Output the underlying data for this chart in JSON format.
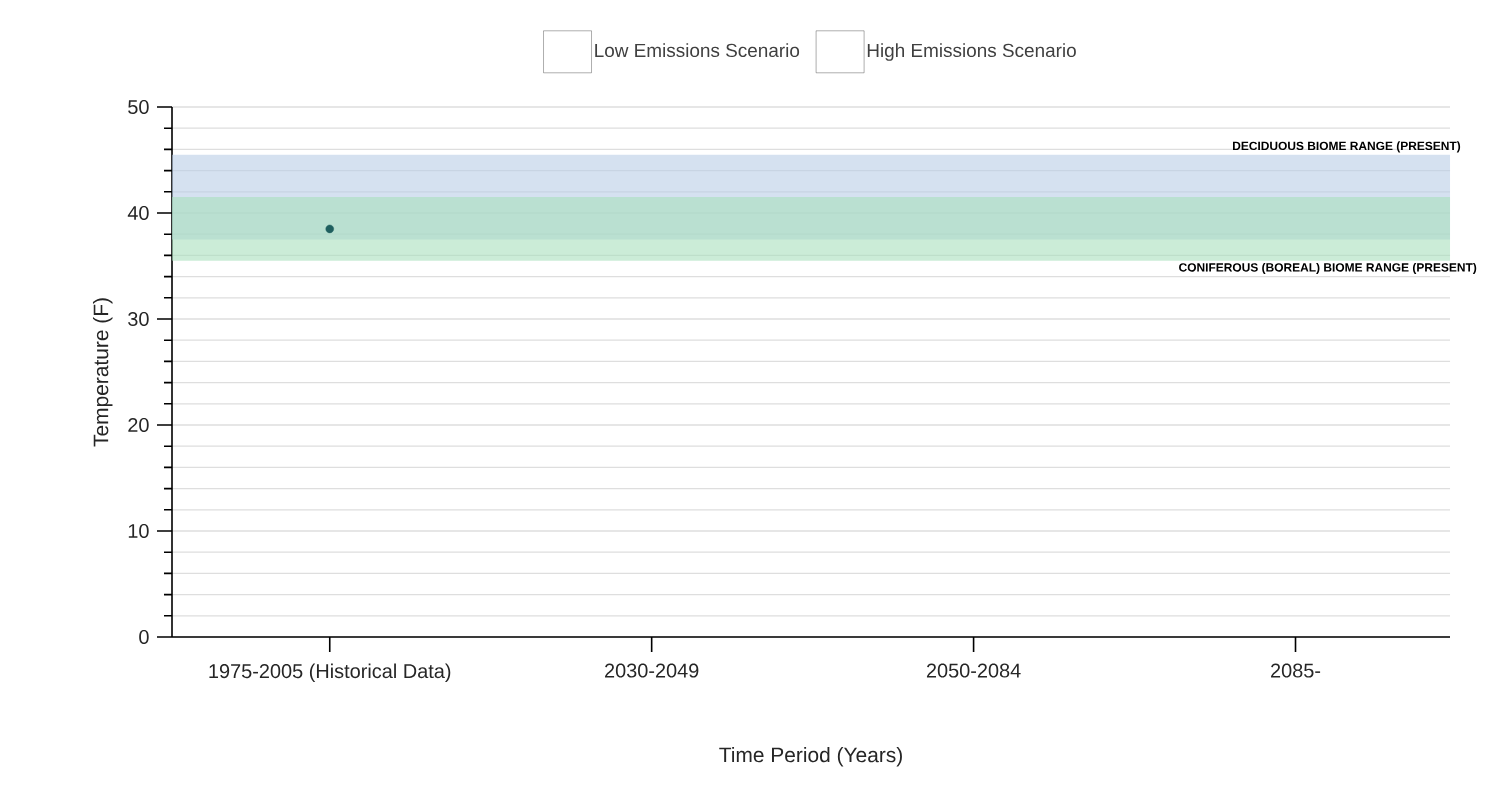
{
  "chart_data": {
    "type": "scatter",
    "xlabel": "Time Period (Years)",
    "ylabel": "Temperature (F)",
    "categories": [
      "1975-2005 (Historical Data)",
      "2030-2049",
      "2050-2084",
      "2085-"
    ],
    "series": [
      {
        "name": "Low Emissions Scenario",
        "color": "#ffffff",
        "values": [
          null,
          null,
          null,
          null
        ]
      },
      {
        "name": "High Emissions Scenario",
        "color": "#ffffff",
        "values": [
          null,
          null,
          null,
          null
        ]
      },
      {
        "color": "#1f5f5f",
        "values": [
          38.5,
          null,
          null,
          null
        ]
      }
    ],
    "ylim": [
      0,
      50
    ],
    "yticks": [
      0,
      {
        "value": 2,
        "label": null
      },
      {
        "value": 4,
        "label": null
      },
      {
        "value": 6,
        "label": null
      },
      {
        "value": 8,
        "label": null
      },
      10,
      {
        "value": 12,
        "label": null
      },
      {
        "value": 14,
        "label": null
      },
      {
        "value": 16,
        "label": null
      },
      {
        "value": 18,
        "label": null
      },
      20,
      {
        "value": 22,
        "label": null
      },
      {
        "value": 24,
        "label": null
      },
      {
        "value": 26,
        "label": null
      },
      {
        "value": 28,
        "label": null
      },
      30,
      {
        "value": 32,
        "label": null
      },
      {
        "value": 34,
        "label": null
      },
      {
        "value": 36,
        "label": null
      },
      {
        "value": 38,
        "label": null
      },
      40,
      {
        "value": 42,
        "label": null
      },
      {
        "value": 44,
        "label": null
      },
      {
        "value": 46,
        "label": null
      },
      {
        "value": 48,
        "label": null
      },
      50
    ],
    "bands": [
      {
        "axis": "y",
        "from": 37.5,
        "to": 45.5,
        "label": "DECIDUOUS BIOME RANGE (PRESENT)",
        "color": "#b9cde6"
      },
      {
        "axis": "y",
        "from": 35.5,
        "to": 41.5,
        "label": "CONIFEROUS (BOREAL) BIOME RANGE (PRESENT)",
        "color": "#a8e0bc"
      }
    ],
    "grid": "y",
    "legend": "top",
    "marker": "circle"
  }
}
